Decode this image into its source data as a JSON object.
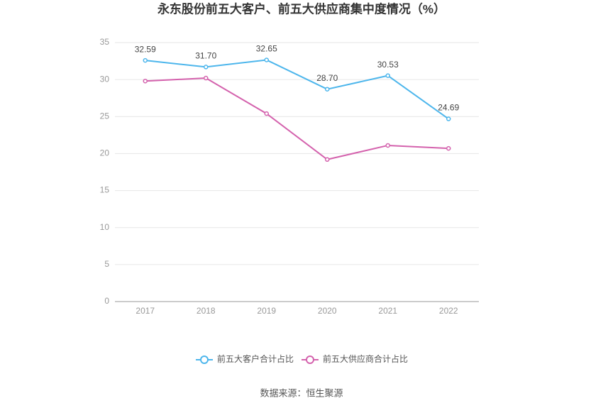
{
  "chart_data": {
    "type": "line",
    "title": "永东股份前五大客户、前五大供应商集中度情况（%）",
    "categories": [
      "2017",
      "2018",
      "2019",
      "2020",
      "2021",
      "2022"
    ],
    "series": [
      {
        "name": "前五大客户合计占比",
        "color": "#4db6ec",
        "values": [
          32.59,
          31.7,
          32.65,
          28.7,
          30.53,
          24.69
        ],
        "value_labels": [
          "32.59",
          "31.70",
          "32.65",
          "28.70",
          "30.53",
          "24.69"
        ]
      },
      {
        "name": "前五大供应商合计占比",
        "color": "#d462ad",
        "values": [
          29.8,
          30.2,
          25.4,
          19.2,
          21.1,
          20.7
        ]
      }
    ],
    "ylim": [
      0,
      35
    ],
    "yticks": [
      0,
      5,
      10,
      15,
      20,
      25,
      30,
      35
    ],
    "grid": true,
    "legend": "bottom",
    "source": "数据来源：恒生聚源"
  }
}
